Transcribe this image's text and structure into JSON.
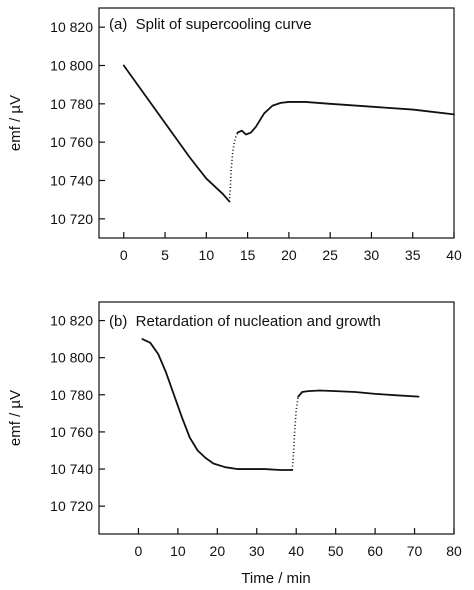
{
  "chart_data": [
    {
      "type": "line",
      "title": "(a)  Split of supercooling curve",
      "xlabel": "",
      "ylabel": "emf / µV",
      "xlim": [
        -3,
        40
      ],
      "ylim": [
        10710,
        10830
      ],
      "xticks": [
        0,
        5,
        10,
        15,
        20,
        25,
        30,
        35,
        40
      ],
      "xtick_labels": [
        "0",
        "5",
        "10",
        "15",
        "20",
        "25",
        "30",
        "35",
        "40"
      ],
      "yticks": [
        10720,
        10740,
        10760,
        10780,
        10800,
        10820
      ],
      "ytick_labels": [
        "10 720",
        "10 740",
        "10 760",
        "10 780",
        "10 800",
        "10 820"
      ],
      "series": [
        {
          "style": "solid",
          "x": [
            0,
            2,
            4,
            6,
            8,
            10,
            12,
            12.8
          ],
          "y": [
            10800,
            10788,
            10776,
            10764,
            10752,
            10741,
            10733,
            10729
          ]
        },
        {
          "style": "dotted",
          "x": [
            12.8,
            12.9,
            13.0,
            13.2,
            13.5,
            13.8
          ],
          "y": [
            10729,
            10736,
            10745,
            10755,
            10762,
            10765
          ]
        },
        {
          "style": "solid",
          "x": [
            13.8,
            14.3,
            14.8,
            15.4,
            16,
            17,
            18,
            19,
            20,
            22,
            25,
            30,
            35,
            40
          ],
          "y": [
            10765,
            10766,
            10764,
            10765,
            10768,
            10775,
            10779,
            10780.5,
            10781,
            10781,
            10780,
            10778.5,
            10777,
            10774.5
          ]
        }
      ]
    },
    {
      "type": "line",
      "title": "(b)  Retardation of nucleation and growth",
      "xlabel": "Time / min",
      "ylabel": "emf / µV",
      "xlim": [
        -10,
        80
      ],
      "ylim": [
        10705,
        10830
      ],
      "xticks": [
        0,
        10,
        20,
        30,
        40,
        50,
        60,
        70,
        80
      ],
      "xtick_labels": [
        "0",
        "10",
        "20",
        "30",
        "40",
        "50",
        "60",
        "70",
        "80"
      ],
      "yticks": [
        10720,
        10740,
        10760,
        10780,
        10800,
        10820
      ],
      "ytick_labels": [
        "10 720",
        "10 740",
        "10 760",
        "10 780",
        "10 800",
        "10 820"
      ],
      "series": [
        {
          "style": "solid",
          "x": [
            1,
            3,
            5,
            7,
            9,
            11,
            13,
            15,
            17,
            19,
            22,
            25,
            28,
            32,
            36,
            39
          ],
          "y": [
            10810,
            10808,
            10802,
            10792,
            10780,
            10768,
            10757,
            10750,
            10746,
            10743,
            10741,
            10740,
            10740,
            10740,
            10739.5,
            10739.5
          ]
        },
        {
          "style": "dotted",
          "x": [
            39,
            39.3,
            39.6,
            40,
            40.5
          ],
          "y": [
            10739.5,
            10748,
            10760,
            10772,
            10779
          ]
        },
        {
          "style": "solid",
          "x": [
            40.5,
            41.5,
            43,
            46,
            50,
            55,
            60,
            65,
            71
          ],
          "y": [
            10779,
            10781.5,
            10782,
            10782.3,
            10782,
            10781.5,
            10780.5,
            10779.8,
            10779
          ]
        }
      ]
    }
  ]
}
